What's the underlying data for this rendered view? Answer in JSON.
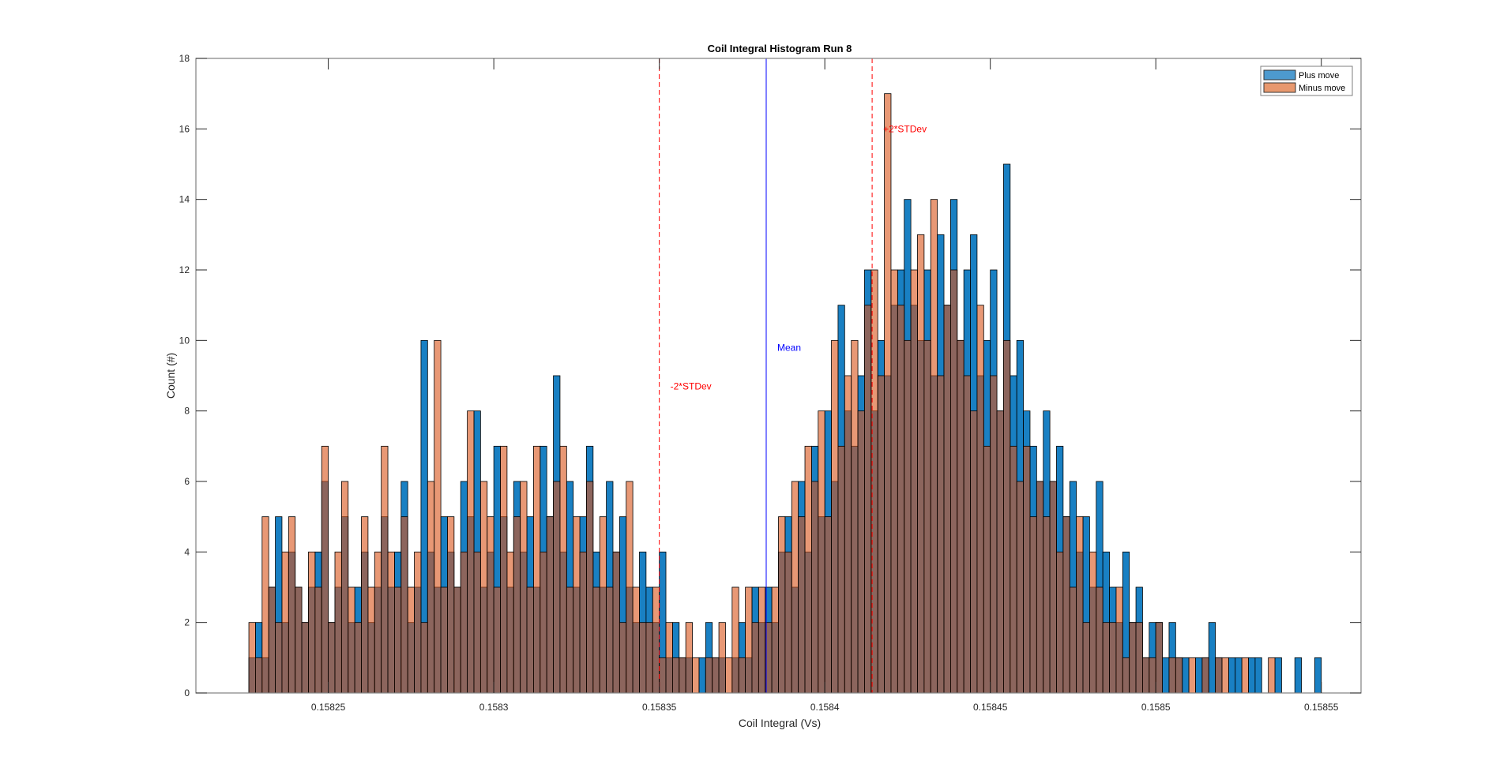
{
  "chart_data": {
    "type": "bar",
    "title": "Coil Integral Histogram Run 8",
    "xlabel": "Coil Integral (Vs)",
    "ylabel": "Count (#)",
    "xlim": [
      0.15821,
      0.158562
    ],
    "ylim": [
      0,
      18
    ],
    "x_ticks": [
      "0.15825",
      "0.1583",
      "0.15835",
      "0.1584",
      "0.15845",
      "0.1585",
      "0.15855"
    ],
    "x_tick_values": [
      0.15825,
      0.1583,
      0.15835,
      0.1584,
      0.15845,
      0.1585,
      0.15855
    ],
    "y_ticks": [
      "0",
      "2",
      "4",
      "6",
      "8",
      "10",
      "12",
      "14",
      "16",
      "18"
    ],
    "y_tick_values": [
      0,
      2,
      4,
      6,
      8,
      10,
      12,
      14,
      16,
      18
    ],
    "grid": false,
    "legend_position": "top-right",
    "bin_start": 0.158226,
    "bin_width": 2e-06,
    "series": [
      {
        "name": "Plus move",
        "color": "#4d9acf",
        "values": [
          1,
          2,
          1,
          3,
          5,
          2,
          4,
          3,
          2,
          3,
          4,
          6,
          2,
          3,
          5,
          2,
          3,
          4,
          2,
          3,
          5,
          3,
          4,
          6,
          2,
          3,
          10,
          4,
          3,
          5,
          4,
          3,
          6,
          5,
          8,
          3,
          4,
          7,
          5,
          3,
          6,
          4,
          5,
          3,
          7,
          5,
          9,
          4,
          6,
          3,
          5,
          7,
          4,
          3,
          6,
          4,
          5,
          3,
          2,
          4,
          3,
          2,
          4,
          1,
          2,
          1,
          1,
          0,
          1,
          2,
          1,
          1,
          0,
          1,
          2,
          1,
          3,
          2,
          3,
          2,
          4,
          5,
          3,
          6,
          4,
          7,
          5,
          8,
          6,
          11,
          8,
          7,
          9,
          12,
          8,
          10,
          9,
          11,
          12,
          14,
          11,
          10,
          12,
          9,
          13,
          11,
          14,
          10,
          12,
          13,
          9,
          10,
          12,
          8,
          15,
          9,
          10,
          8,
          7,
          6,
          8,
          6,
          7,
          5,
          6,
          4,
          5,
          3,
          6,
          4,
          3,
          2,
          4,
          2,
          3,
          1,
          2,
          2,
          1,
          2,
          1,
          1,
          0,
          1,
          1,
          2,
          1,
          0,
          1,
          1,
          0,
          1,
          1,
          0,
          0,
          1,
          0,
          0,
          1,
          0,
          0,
          1,
          0
        ]
      },
      {
        "name": "Minus move",
        "color": "#e8986e",
        "values": [
          2,
          1,
          5,
          3,
          2,
          4,
          5,
          3,
          2,
          4,
          3,
          7,
          2,
          4,
          6,
          3,
          2,
          5,
          3,
          4,
          7,
          4,
          3,
          5,
          3,
          4,
          2,
          6,
          10,
          3,
          5,
          3,
          4,
          8,
          4,
          6,
          5,
          3,
          7,
          4,
          5,
          6,
          3,
          7,
          4,
          5,
          6,
          7,
          3,
          5,
          4,
          6,
          3,
          5,
          3,
          4,
          2,
          6,
          3,
          2,
          2,
          3,
          1,
          2,
          1,
          1,
          2,
          1,
          0,
          1,
          1,
          2,
          1,
          3,
          1,
          3,
          2,
          3,
          2,
          3,
          5,
          4,
          6,
          5,
          7,
          6,
          8,
          5,
          10,
          7,
          9,
          10,
          8,
          11,
          12,
          9,
          17,
          12,
          11,
          10,
          12,
          13,
          10,
          14,
          9,
          11,
          12,
          10,
          9,
          8,
          11,
          7,
          9,
          8,
          10,
          7,
          6,
          7,
          5,
          6,
          5,
          6,
          4,
          5,
          3,
          5,
          2,
          4,
          3,
          2,
          2,
          3,
          1,
          2,
          2,
          1,
          1,
          2,
          0,
          1,
          1,
          0,
          1,
          0,
          1,
          0,
          1,
          1,
          0,
          0,
          1,
          0,
          0,
          0,
          1,
          0,
          0,
          0,
          0,
          0,
          0,
          0,
          0
        ]
      }
    ],
    "annotations": [
      {
        "label": "-2*STDev",
        "x": 0.15835,
        "label_y": 8.7,
        "color": "#ff0000",
        "style": "dashed"
      },
      {
        "label": "Mean",
        "x": 0.1583823,
        "label_y": 9.8,
        "color": "#0000ff",
        "style": "solid"
      },
      {
        "label": "+2*STDev",
        "x": 0.1584143,
        "label_y": 16,
        "color": "#ff0000",
        "style": "dashed"
      }
    ]
  }
}
